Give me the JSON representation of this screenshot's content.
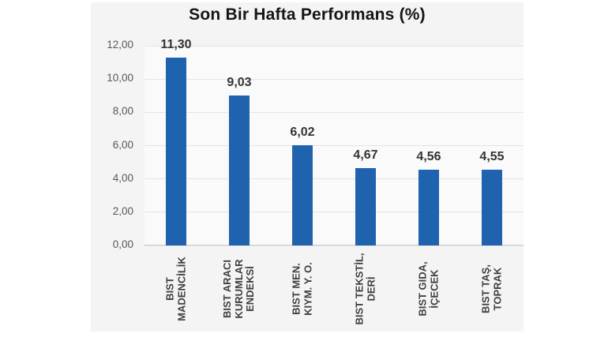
{
  "chart_data": {
    "type": "bar",
    "title": "Son Bir Hafta Performans (%)",
    "categories": [
      "BIST\nMADENCİLİK",
      "BIST ARACI\nKURUMLAR\nENDEKSİ",
      "BIST MEN.\nKIYM. Y. O.",
      "BIST TEKSTİL,\nDERİ",
      "BIST GIDA,\nİÇECEK",
      "BIST TAŞ,\nTOPRAK"
    ],
    "values": [
      11.3,
      9.03,
      6.02,
      4.67,
      4.56,
      4.55
    ],
    "value_labels": [
      "11,30",
      "9,03",
      "6,02",
      "4,67",
      "4,56",
      "4,55"
    ],
    "ytick_labels": [
      "12,00",
      "10,00",
      "8,00",
      "6,00",
      "4,00",
      "2,00",
      "0,00"
    ],
    "ytick_values": [
      12,
      10,
      8,
      6,
      4,
      2,
      0
    ],
    "ylim": [
      0,
      12
    ],
    "xlabel": "",
    "ylabel": "",
    "grid": true,
    "legend": false,
    "bar_color": "#1f62ae",
    "grid_color": "#e4e4e7",
    "axis_line_color": "#cccccf",
    "panel_bg": "#f4f4f5",
    "plot_bg": "#fafafb",
    "title_color": "#151515",
    "value_label_color": "#333333",
    "ytick_color": "#585858",
    "xlabel_color": "#3f3f3f"
  }
}
